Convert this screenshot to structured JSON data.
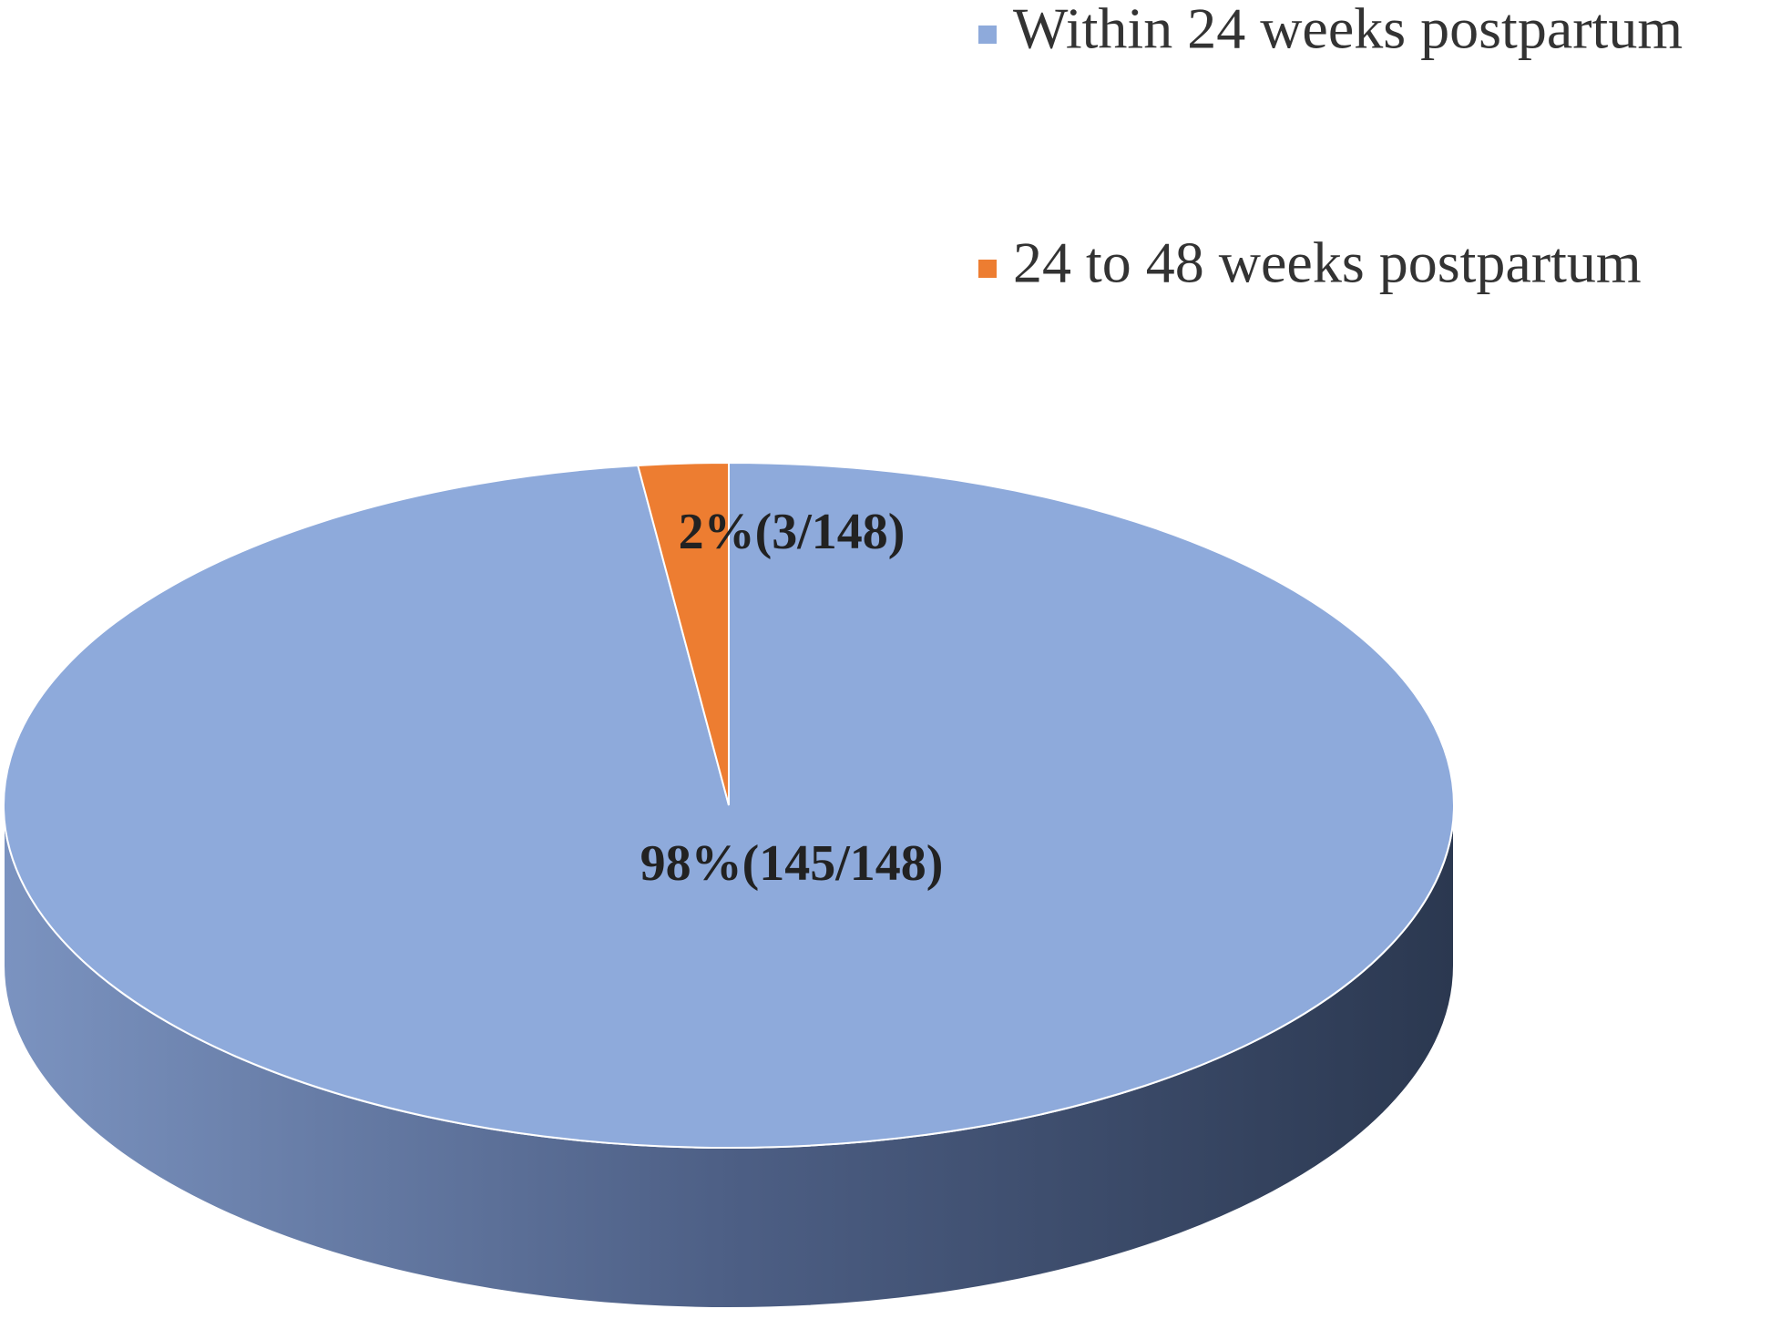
{
  "chart_data": {
    "type": "pie",
    "categories": [
      "Within 24 weeks postpartum",
      "24 to 48 weeks postpartum"
    ],
    "values": [
      98,
      2
    ],
    "value_labels": [
      "98%(145/148)",
      "2%(3/148)"
    ],
    "colors": [
      "#8eaadb",
      "#ed7d31"
    ]
  }
}
